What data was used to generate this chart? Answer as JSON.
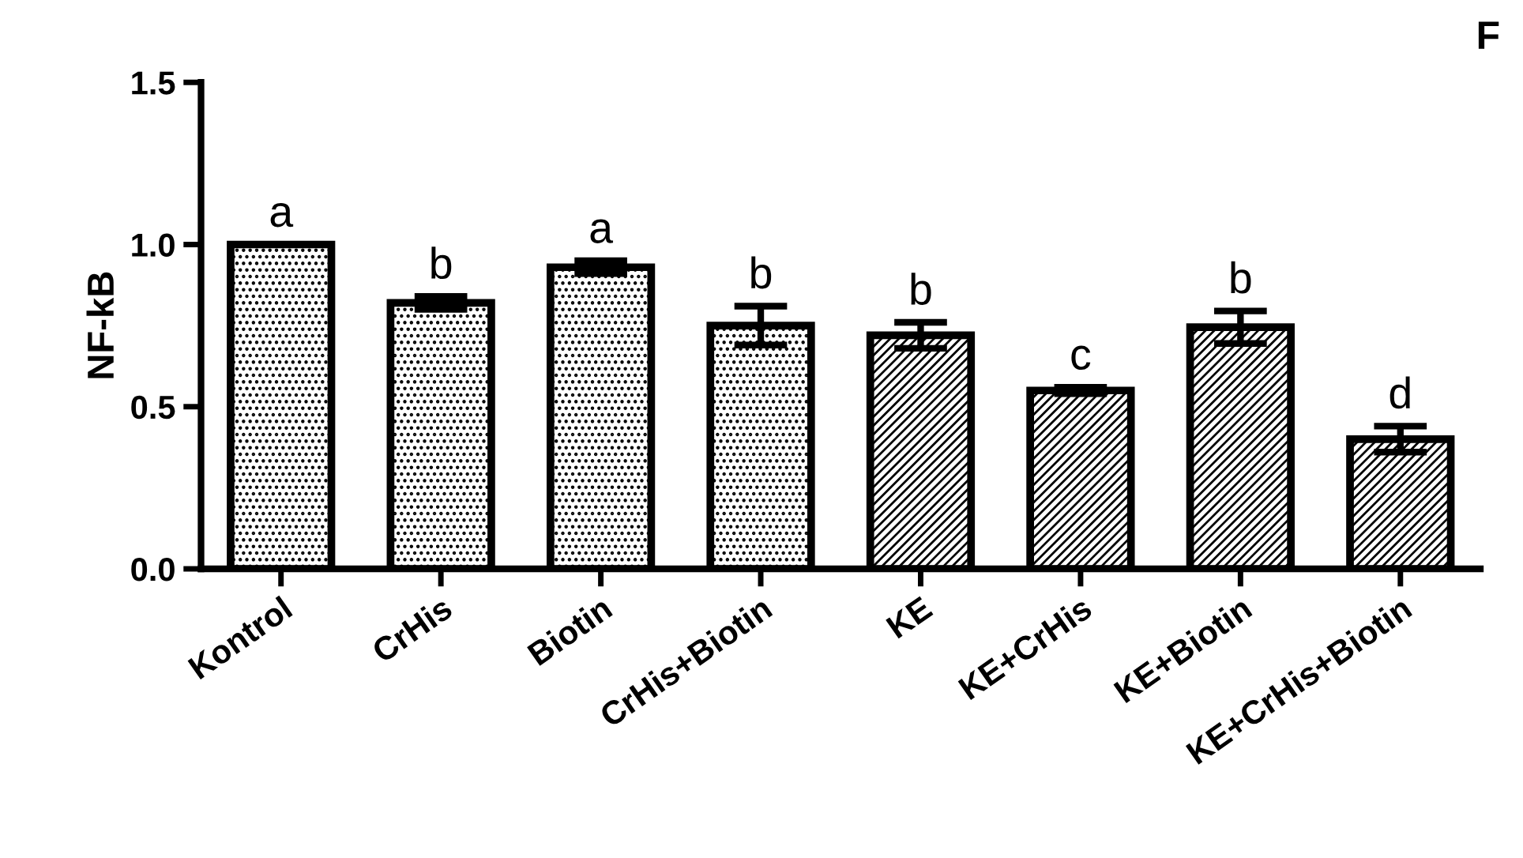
{
  "chart_data": {
    "type": "bar",
    "ylabel": "NF-kB",
    "categories": [
      "Kontrol",
      "CrHis",
      "Biotin",
      "CrHis+Biotin",
      "KE",
      "KE+CrHis",
      "KE+Biotin",
      "KE+CrHis+Biotin"
    ],
    "values": [
      1.0,
      0.82,
      0.93,
      0.75,
      0.72,
      0.55,
      0.745,
      0.4
    ],
    "errors": [
      null,
      0.02,
      0.02,
      0.06,
      0.04,
      0.01,
      0.05,
      0.04
    ],
    "color": "#000000",
    "value_labels": [
      "a",
      "b",
      "a",
      "b",
      "b",
      "c",
      "b",
      "d"
    ],
    "ylim": [
      0,
      1.5
    ],
    "yticks": [
      {
        "value": 0,
        "label": "0.0"
      },
      {
        "value": 0.5,
        "label": "0.5"
      },
      {
        "value": 1.0,
        "label": "1.0"
      },
      {
        "value": 1.5,
        "label": "1.5"
      }
    ],
    "grid": false,
    "legend": false,
    "annotations": [
      "F"
    ]
  }
}
